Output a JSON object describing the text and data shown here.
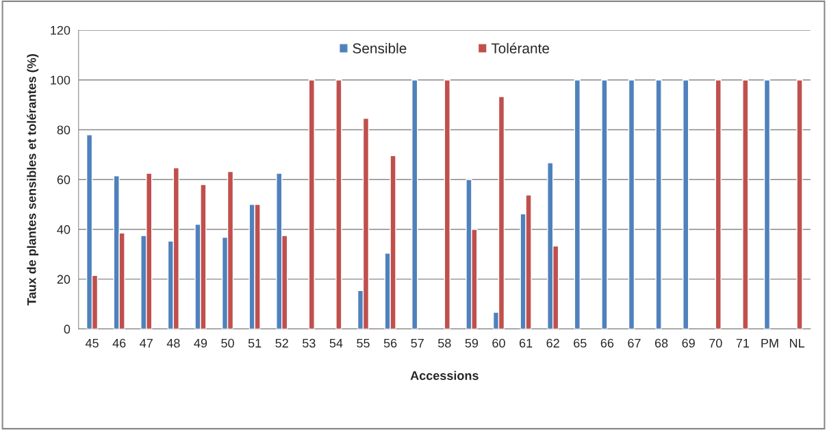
{
  "chart_data": {
    "type": "bar",
    "xlabel": "Accessions",
    "ylabel": "Taux de plantes sensibles et tolérantes (%)",
    "categories": [
      "45",
      "46",
      "47",
      "48",
      "49",
      "50",
      "51",
      "52",
      "53",
      "54",
      "55",
      "56",
      "57",
      "58",
      "59",
      "60",
      "61",
      "62",
      "65",
      "66",
      "67",
      "68",
      "69",
      "70",
      "71",
      "PM",
      "NL"
    ],
    "series": [
      {
        "name": "Sensible",
        "color": "#4f81bd",
        "values": [
          78,
          61.5,
          37.5,
          35.3,
          42,
          36.8,
          50,
          62.5,
          null,
          null,
          15.4,
          30.4,
          100,
          null,
          60,
          6.7,
          46.2,
          66.7,
          100,
          100,
          100,
          100,
          100,
          null,
          null,
          100,
          null
        ]
      },
      {
        "name": "Tolérante",
        "color": "#c0504d",
        "values": [
          21.5,
          38.5,
          62.5,
          64.7,
          58,
          63.2,
          50,
          37.5,
          100,
          100,
          84.6,
          69.6,
          null,
          100,
          40,
          93.3,
          53.8,
          33.3,
          null,
          null,
          null,
          null,
          null,
          100,
          100,
          null,
          100
        ]
      }
    ],
    "ylim": [
      0,
      120
    ],
    "yticks": [
      0,
      20,
      40,
      60,
      80,
      100,
      120
    ],
    "grid": "y",
    "legend": "top"
  }
}
